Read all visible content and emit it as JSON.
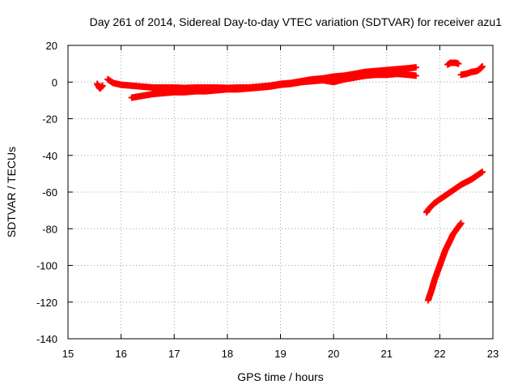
{
  "chart_data": {
    "type": "scatter",
    "title": "Day 261 of 2014, Sidereal Day-to-day VTEC variation (SDTVAR) for receiver azu1",
    "xlabel": "GPS time / hours",
    "ylabel": "SDTVAR / TECUs",
    "xlim": [
      15,
      23
    ],
    "ylim": [
      -140,
      20
    ],
    "xticks": [
      15,
      16,
      17,
      18,
      19,
      20,
      21,
      22,
      23
    ],
    "yticks": [
      -140,
      -120,
      -100,
      -80,
      -60,
      -40,
      -20,
      0,
      20
    ],
    "grid": true,
    "marker": "plus",
    "color": "#ff0000",
    "series": [
      {
        "x": [
          15.55,
          15.6,
          15.65
        ],
        "y": [
          -1,
          -3.5,
          -2
        ]
      },
      {
        "x": [
          15.75,
          15.85,
          16.0,
          16.2,
          16.4,
          16.6,
          16.8,
          17.0,
          17.2,
          17.4,
          17.6,
          17.8,
          18.0,
          18.2,
          18.4,
          18.6,
          18.8,
          19.0,
          19.2,
          19.4,
          19.6,
          19.8,
          20.0,
          20.2,
          20.4,
          20.6,
          20.8,
          21.0,
          21.2,
          21.4,
          21.55
        ],
        "y": [
          1.5,
          -0.5,
          -1.5,
          -2,
          -2.5,
          -3,
          -3,
          -3,
          -3.2,
          -3,
          -3,
          -3,
          -3.2,
          -3,
          -3,
          -2.5,
          -2,
          -1,
          -0.5,
          0.5,
          1.5,
          2,
          3,
          3.5,
          4.5,
          5.5,
          6,
          6.5,
          7,
          7.5,
          8
        ]
      },
      {
        "x": [
          16.2,
          16.4,
          16.6,
          16.8,
          17.0,
          17.2,
          17.4,
          17.6,
          17.8,
          18.0,
          18.2,
          18.4,
          18.6,
          18.8,
          19.0,
          19.2,
          19.4,
          19.6,
          19.8,
          20.0,
          20.2,
          20.4,
          20.6,
          20.8,
          21.0,
          21.2,
          21.4,
          21.55
        ],
        "y": [
          -8.5,
          -7.5,
          -6.5,
          -6,
          -5.5,
          -5.5,
          -5,
          -5,
          -4.5,
          -4,
          -4,
          -3.5,
          -3,
          -2.5,
          -1.5,
          -1,
          0,
          0.5,
          1,
          0,
          1.5,
          2.5,
          3.5,
          4,
          4,
          4.5,
          4,
          3.5
        ]
      },
      {
        "x": [
          22.15,
          22.2,
          22.3,
          22.35
        ],
        "y": [
          9.5,
          10.5,
          10.5,
          10
        ]
      },
      {
        "x": [
          22.4,
          22.5,
          22.6,
          22.7,
          22.75,
          22.8
        ],
        "y": [
          4,
          4.5,
          5.5,
          6,
          7,
          8.5
        ]
      },
      {
        "x": [
          21.75,
          21.8,
          21.9,
          22.0,
          22.1,
          22.2,
          22.3,
          22.4,
          22.5,
          22.6,
          22.7,
          22.8
        ],
        "y": [
          -71,
          -69,
          -66,
          -64,
          -62,
          -60,
          -58,
          -56,
          -54.5,
          -53,
          -51,
          -49
        ]
      },
      {
        "x": [
          21.78,
          21.85,
          21.9,
          21.95,
          22.0,
          22.05,
          22.1,
          22.15,
          22.2,
          22.25,
          22.3,
          22.35,
          22.4
        ],
        "y": [
          -119,
          -113,
          -108,
          -104,
          -100,
          -96,
          -92,
          -89,
          -86,
          -83,
          -81,
          -79,
          -77
        ]
      }
    ]
  }
}
